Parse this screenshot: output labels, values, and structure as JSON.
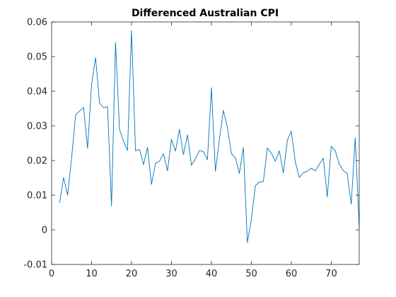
{
  "chart_data": {
    "type": "line",
    "title": "Differenced Australian CPI",
    "xlabel": "",
    "ylabel": "",
    "xlim": [
      0,
      77
    ],
    "ylim": [
      -0.01,
      0.06
    ],
    "x_ticks": [
      0,
      10,
      20,
      30,
      40,
      50,
      60,
      70
    ],
    "y_ticks": [
      -0.01,
      0,
      0.01,
      0.02,
      0.03,
      0.04,
      0.05,
      0.06
    ],
    "x_tick_labels": [
      "0",
      "10",
      "20",
      "30",
      "40",
      "50",
      "60",
      "70"
    ],
    "y_tick_labels": [
      "-0.01",
      "0",
      "0.01",
      "0.02",
      "0.03",
      "0.04",
      "0.05",
      "0.06"
    ],
    "grid": false,
    "box": true,
    "series": [
      {
        "color": "#0072BD",
        "x": [
          2,
          3,
          4,
          5,
          6,
          7,
          8,
          9,
          10,
          11,
          12,
          13,
          14,
          15,
          16,
          17,
          18,
          19,
          20,
          21,
          22,
          23,
          24,
          25,
          26,
          27,
          28,
          29,
          30,
          31,
          32,
          33,
          34,
          35,
          36,
          37,
          38,
          39,
          40,
          41,
          42,
          43,
          44,
          45,
          46,
          47,
          48,
          49,
          50,
          51,
          52,
          53,
          54,
          55,
          56,
          57,
          58,
          59,
          60,
          61,
          62,
          63,
          64,
          65,
          66,
          67,
          68,
          69,
          70,
          71,
          72,
          73,
          74,
          75,
          76,
          77
        ],
        "y": [
          0.0078,
          0.0151,
          0.01,
          0.0207,
          0.0331,
          0.0343,
          0.0353,
          0.0235,
          0.0419,
          0.0497,
          0.0366,
          0.0352,
          0.0356,
          0.0069,
          0.0541,
          0.0289,
          0.0256,
          0.0229,
          0.0575,
          0.0228,
          0.0232,
          0.0188,
          0.0238,
          0.0131,
          0.0192,
          0.0198,
          0.022,
          0.017,
          0.0261,
          0.0227,
          0.029,
          0.0217,
          0.0274,
          0.0186,
          0.0205,
          0.0229,
          0.0226,
          0.0202,
          0.041,
          0.0169,
          0.0261,
          0.0345,
          0.0296,
          0.022,
          0.0208,
          0.0163,
          0.0238,
          -0.0037,
          0.0031,
          0.0127,
          0.0138,
          0.0139,
          0.0236,
          0.0221,
          0.0198,
          0.0228,
          0.0164,
          0.0258,
          0.0284,
          0.0196,
          0.0151,
          0.0165,
          0.0169,
          0.0178,
          0.017,
          0.0189,
          0.0207,
          0.0095,
          0.0241,
          0.0228,
          0.019,
          0.0171,
          0.0162,
          0.0074,
          0.0266,
          0.0004
        ]
      }
    ]
  }
}
